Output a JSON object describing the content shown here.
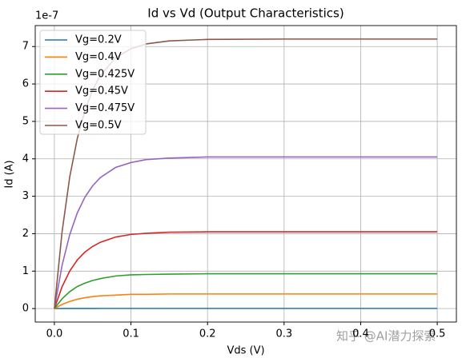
{
  "chart_data": {
    "type": "line",
    "title": "Id vs Vd (Output Characteristics)",
    "x_label": "Vds (V)",
    "y_label": "Id (A)",
    "y_offset_label": "1e-7",
    "watermark": "知乎 @AI潜力探索",
    "x": [
      0,
      0.01,
      0.02,
      0.03,
      0.04,
      0.05,
      0.06,
      0.08,
      0.1,
      0.12,
      0.15,
      0.2,
      0.3,
      0.4,
      0.5
    ],
    "series": [
      {
        "name": "Vg=0.2V",
        "color": "#1f77b4",
        "values": [
          0,
          0.001,
          0.001,
          0.002,
          0.002,
          0.002,
          0.003,
          0.003,
          0.003,
          0.003,
          0.003,
          0.003,
          0.003,
          0.003,
          0.003
        ]
      },
      {
        "name": "Vg=0.4V",
        "color": "#ff7f0e",
        "values": [
          0,
          0.11,
          0.19,
          0.25,
          0.29,
          0.32,
          0.34,
          0.36,
          0.38,
          0.38,
          0.39,
          0.39,
          0.39,
          0.39,
          0.39
        ]
      },
      {
        "name": "Vg=0.425V",
        "color": "#2ca02c",
        "values": [
          0,
          0.26,
          0.45,
          0.59,
          0.68,
          0.75,
          0.8,
          0.87,
          0.9,
          0.91,
          0.92,
          0.93,
          0.93,
          0.93,
          0.93
        ]
      },
      {
        "name": "Vg=0.45V",
        "color": "#d62728",
        "values": [
          0,
          0.58,
          1.0,
          1.3,
          1.51,
          1.66,
          1.77,
          1.91,
          1.98,
          2.01,
          2.04,
          2.05,
          2.05,
          2.05,
          2.05
        ]
      },
      {
        "name": "Vg=0.475V",
        "color": "#9467bd",
        "values": [
          0,
          1.15,
          1.97,
          2.56,
          2.98,
          3.28,
          3.5,
          3.77,
          3.9,
          3.98,
          4.02,
          4.05,
          4.05,
          4.05,
          4.05
        ]
      },
      {
        "name": "Vg=0.5V",
        "color": "#8c564b",
        "values": [
          0,
          2.04,
          3.51,
          4.55,
          5.3,
          5.84,
          6.23,
          6.7,
          6.94,
          7.07,
          7.15,
          7.19,
          7.2,
          7.2,
          7.2
        ]
      }
    ],
    "xlim": [
      -0.025,
      0.525
    ],
    "ylim": [
      -0.36,
      7.56
    ],
    "xticks": [
      {
        "value": 0,
        "label": "0.0"
      },
      0.1,
      0.2,
      0.3,
      0.4,
      0.5
    ],
    "yticks": [
      0,
      1,
      2,
      3,
      4,
      5,
      6,
      7
    ],
    "grid": true,
    "legend": "upper-left"
  }
}
